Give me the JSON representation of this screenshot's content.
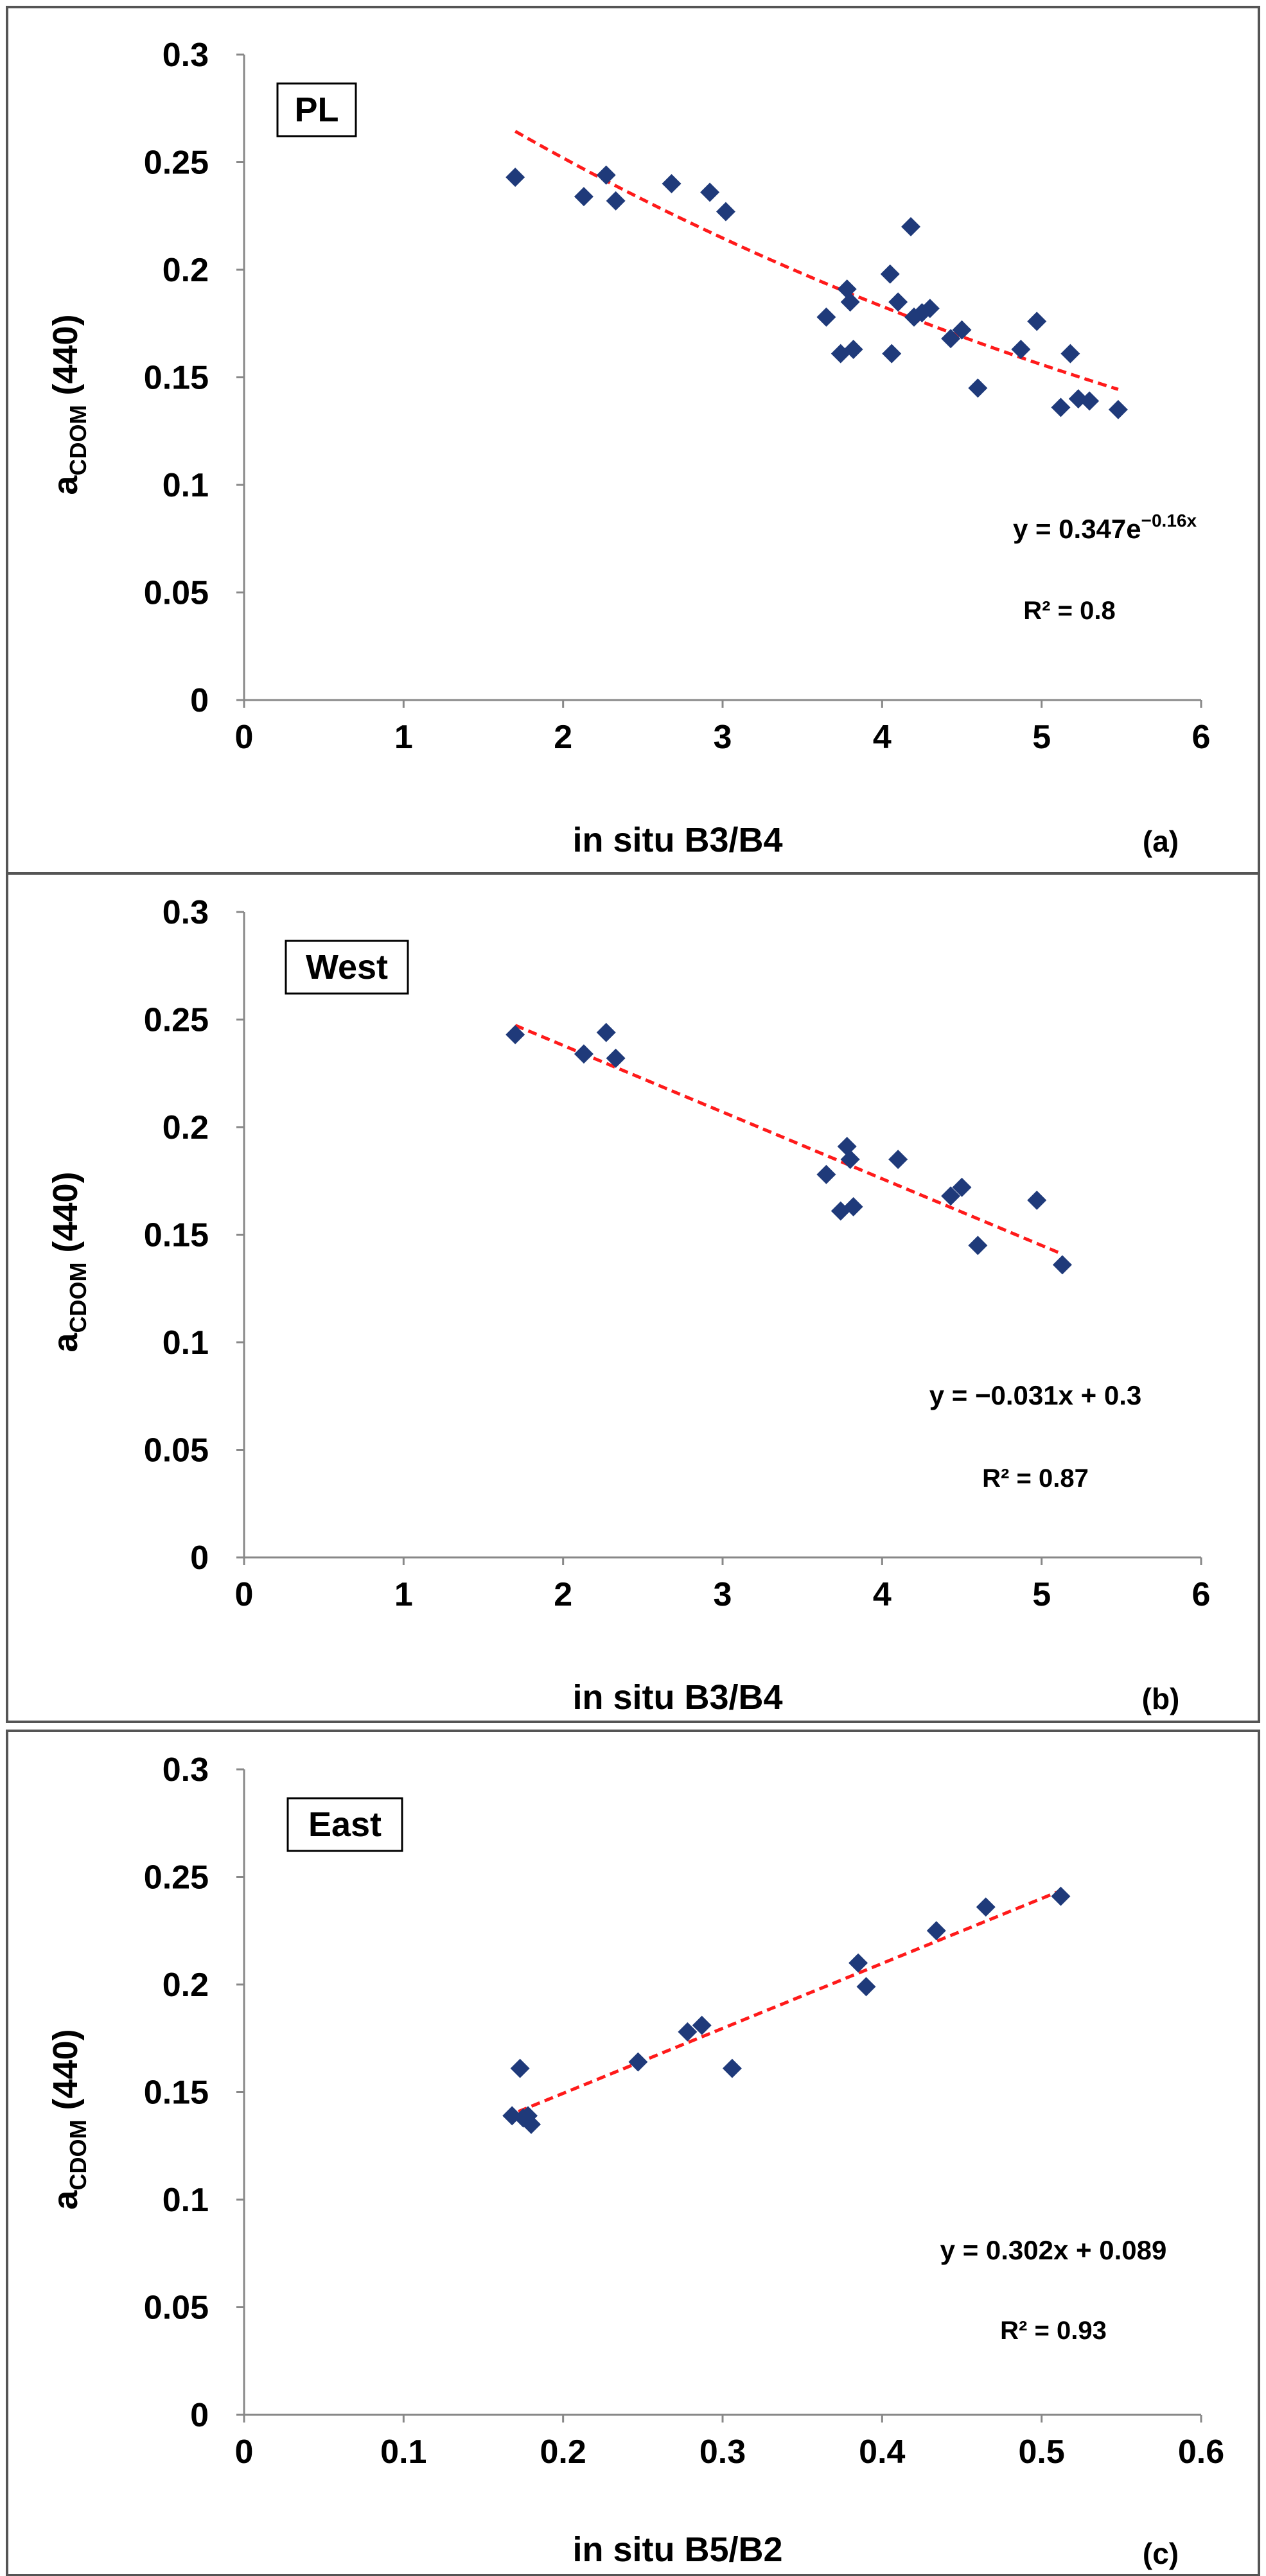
{
  "chart_data": [
    {
      "type": "scatter",
      "panel_tag": "(a)",
      "region_label": "PL",
      "xlabel": "in situ B3/B4",
      "ylabel_main": "a",
      "ylabel_sub": "CDOM",
      "ylabel_tail": " (440)",
      "xlim": [
        0,
        6
      ],
      "ylim": [
        0,
        0.3
      ],
      "xticks": [
        0,
        1,
        2,
        3,
        4,
        5,
        6
      ],
      "xtick_labels": [
        "0",
        "1",
        "2",
        "3",
        "4",
        "5",
        "6"
      ],
      "yticks": [
        0,
        0.05,
        0.1,
        0.15,
        0.2,
        0.25,
        0.3
      ],
      "ytick_labels": [
        "0",
        "0.05",
        "0.1",
        "0.15",
        "0.2",
        "0.25",
        "0.3"
      ],
      "equation_main": "y = 0.347e",
      "equation_sup": "−0.16x",
      "r2_text": "R² = 0.8",
      "fit": {
        "kind": "exponential",
        "a": 0.347,
        "b": -0.16,
        "x_range": [
          1.7,
          5.48
        ]
      },
      "points": [
        [
          1.7,
          0.243
        ],
        [
          2.13,
          0.234
        ],
        [
          2.27,
          0.244
        ],
        [
          2.33,
          0.232
        ],
        [
          2.68,
          0.24
        ],
        [
          2.92,
          0.236
        ],
        [
          3.02,
          0.227
        ],
        [
          3.65,
          0.178
        ],
        [
          3.74,
          0.161
        ],
        [
          3.78,
          0.191
        ],
        [
          3.8,
          0.185
        ],
        [
          3.82,
          0.163
        ],
        [
          4.05,
          0.198
        ],
        [
          4.06,
          0.161
        ],
        [
          4.1,
          0.185
        ],
        [
          4.18,
          0.22
        ],
        [
          4.2,
          0.178
        ],
        [
          4.25,
          0.18
        ],
        [
          4.3,
          0.182
        ],
        [
          4.43,
          0.168
        ],
        [
          4.5,
          0.172
        ],
        [
          4.6,
          0.145
        ],
        [
          4.87,
          0.163
        ],
        [
          4.97,
          0.176
        ],
        [
          5.12,
          0.136
        ],
        [
          5.18,
          0.161
        ],
        [
          5.23,
          0.14
        ],
        [
          5.3,
          0.139
        ],
        [
          5.48,
          0.135
        ]
      ],
      "colors": {
        "marker": "#1f3a7a",
        "fit": "#ff1a1a"
      }
    },
    {
      "type": "scatter",
      "panel_tag": "(b)",
      "region_label": "West",
      "xlabel": "in situ B3/B4",
      "ylabel_main": "a",
      "ylabel_sub": "CDOM",
      "ylabel_tail": " (440)",
      "xlim": [
        0,
        6
      ],
      "ylim": [
        0,
        0.3
      ],
      "xticks": [
        0,
        1,
        2,
        3,
        4,
        5,
        6
      ],
      "xtick_labels": [
        "0",
        "1",
        "2",
        "3",
        "4",
        "5",
        "6"
      ],
      "yticks": [
        0,
        0.05,
        0.1,
        0.15,
        0.2,
        0.25,
        0.3
      ],
      "ytick_labels": [
        "0",
        "0.05",
        "0.1",
        "0.15",
        "0.2",
        "0.25",
        "0.3"
      ],
      "equation_main": "y = −0.031x + 0.3",
      "equation_sup": "",
      "r2_text": "R² = 0.87",
      "fit": {
        "kind": "linear",
        "m": -0.031,
        "c": 0.3,
        "x_range": [
          1.7,
          5.13
        ]
      },
      "points": [
        [
          1.7,
          0.243
        ],
        [
          2.13,
          0.234
        ],
        [
          2.27,
          0.244
        ],
        [
          2.33,
          0.232
        ],
        [
          3.65,
          0.178
        ],
        [
          3.74,
          0.161
        ],
        [
          3.78,
          0.191
        ],
        [
          3.8,
          0.185
        ],
        [
          3.82,
          0.163
        ],
        [
          4.1,
          0.185
        ],
        [
          4.43,
          0.168
        ],
        [
          4.5,
          0.172
        ],
        [
          4.6,
          0.145
        ],
        [
          4.97,
          0.166
        ],
        [
          5.13,
          0.136
        ]
      ],
      "colors": {
        "marker": "#1f3a7a",
        "fit": "#ff1a1a"
      }
    },
    {
      "type": "scatter",
      "panel_tag": "(c)",
      "region_label": "East",
      "xlabel": "in situ B5/B2",
      "ylabel_main": "a",
      "ylabel_sub": "CDOM",
      "ylabel_tail": " (440)",
      "xlim": [
        0,
        0.6
      ],
      "ylim": [
        0,
        0.3
      ],
      "xticks": [
        0,
        0.1,
        0.2,
        0.3,
        0.4,
        0.5,
        0.6
      ],
      "xtick_labels": [
        "0",
        "0.1",
        "0.2",
        "0.3",
        "0.4",
        "0.5",
        "0.6"
      ],
      "yticks": [
        0,
        0.05,
        0.1,
        0.15,
        0.2,
        0.25,
        0.3
      ],
      "ytick_labels": [
        "0",
        "0.05",
        "0.1",
        "0.15",
        "0.2",
        "0.25",
        "0.3"
      ],
      "equation_main": "y = 0.302x + 0.089",
      "equation_sup": "",
      "r2_text": "R² = 0.93",
      "fit": {
        "kind": "linear",
        "m": 0.302,
        "c": 0.089,
        "x_range": [
          0.172,
          0.512
        ]
      },
      "points": [
        [
          0.168,
          0.139
        ],
        [
          0.173,
          0.161
        ],
        [
          0.175,
          0.138
        ],
        [
          0.178,
          0.139
        ],
        [
          0.18,
          0.135
        ],
        [
          0.247,
          0.164
        ],
        [
          0.278,
          0.178
        ],
        [
          0.287,
          0.181
        ],
        [
          0.306,
          0.161
        ],
        [
          0.385,
          0.21
        ],
        [
          0.39,
          0.199
        ],
        [
          0.434,
          0.225
        ],
        [
          0.465,
          0.236
        ],
        [
          0.512,
          0.241
        ]
      ],
      "colors": {
        "marker": "#1f3a7a",
        "fit": "#ff1a1a"
      }
    }
  ]
}
